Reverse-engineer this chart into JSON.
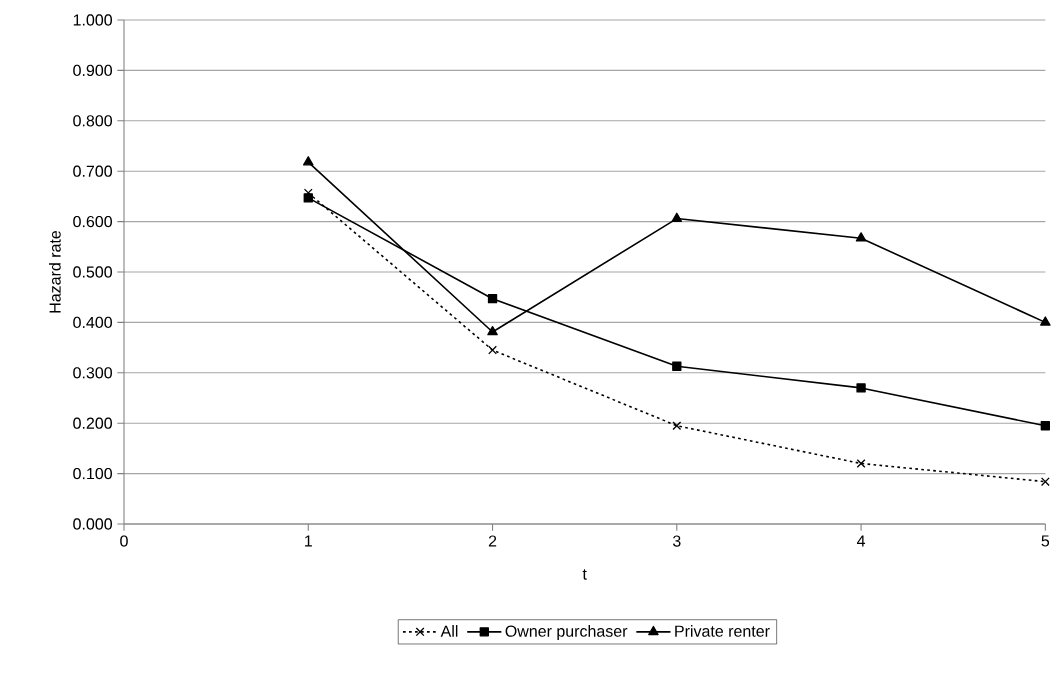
{
  "chart_data": {
    "type": "line",
    "xlabel": "t",
    "ylabel": "Hazard rate",
    "x": [
      1,
      2,
      3,
      4,
      5
    ],
    "xlim": [
      0,
      5
    ],
    "xticks": [
      0,
      1,
      2,
      3,
      4,
      5
    ],
    "ylim": [
      0,
      1
    ],
    "yticks": [
      {
        "value": 0,
        "label": "0.000"
      },
      {
        "value": 0.1,
        "label": "0.100"
      },
      {
        "value": 0.2,
        "label": "0.200"
      },
      {
        "value": 0.3,
        "label": "0.300"
      },
      {
        "value": 0.4,
        "label": "0.400"
      },
      {
        "value": 0.5,
        "label": "0.500"
      },
      {
        "value": 0.6,
        "label": "0.600"
      },
      {
        "value": 0.7,
        "label": "0.700"
      },
      {
        "value": 0.8,
        "label": "0.800"
      },
      {
        "value": 0.9,
        "label": "0.900"
      },
      {
        "value": 1,
        "label": "1.000"
      }
    ],
    "grid": "y",
    "legend": "bottom",
    "series": [
      {
        "name": "All",
        "color": "#000000",
        "marker": "cross",
        "line_style": "dotted",
        "values": [
          0.657,
          0.345,
          0.195,
          0.12,
          0.084
        ]
      },
      {
        "name": "Owner purchaser",
        "color": "#000000",
        "marker": "square",
        "line_style": "solid",
        "values": [
          0.647,
          0.447,
          0.313,
          0.27,
          0.195
        ]
      },
      {
        "name": "Private renter",
        "color": "#000000",
        "marker": "triangle",
        "line_style": "solid",
        "values": [
          0.718,
          0.381,
          0.606,
          0.567,
          0.4
        ]
      }
    ]
  }
}
